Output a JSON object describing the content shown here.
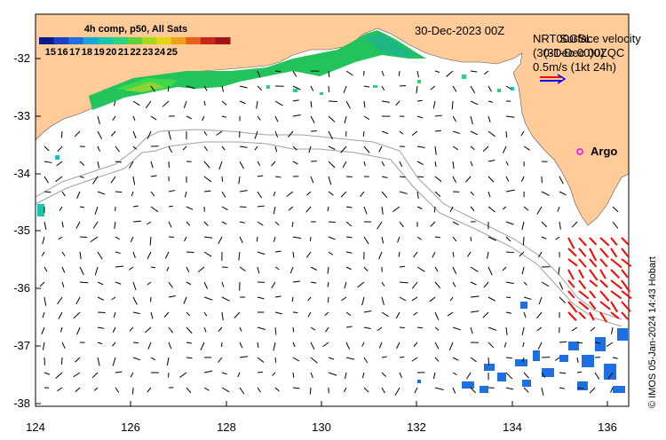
{
  "map": {
    "date_label": "30-Dec-2023 00Z",
    "colorbar": {
      "title": "4h comp, p50, All Sats",
      "ticks": [
        "15",
        "16",
        "17",
        "18",
        "19",
        "20",
        "21",
        "22",
        "23",
        "24",
        "25"
      ],
      "colors": [
        "#0a1a8c",
        "#1a3fc8",
        "#1e6fe0",
        "#1aa6d8",
        "#18c6b0",
        "#2ed27a",
        "#5cd23c",
        "#a6d81e",
        "#e8d214",
        "#f0a018",
        "#e86018",
        "#c8281a",
        "#a0141a"
      ]
    },
    "legend": {
      "line1": "NRT00GSL",
      "line1_overlap": "Surface velocity",
      "line2": "(30-Dec 00)0ZQC",
      "line2_overlap": "(31-Dec 00)",
      "scale_label": "0.5m/s (1kt 24h)"
    },
    "argo_label": "Argo",
    "credit": "© IMOS 05-Jan-2024 14:43 Hobart",
    "axes": {
      "x_ticks": [
        "124",
        "126",
        "128",
        "130",
        "132",
        "134",
        "136"
      ],
      "y_ticks": [
        "-32",
        "-33",
        "-34",
        "-35",
        "-36",
        "-37",
        "-38"
      ]
    },
    "colors": {
      "land": "#ffcc99",
      "ocean": "#ffffff",
      "arrow": "#000000",
      "hf_arrow": "#ff0000",
      "argo": "#ff00ff",
      "scale_blue": "#0000ff",
      "scale_red": "#ff0000"
    }
  }
}
